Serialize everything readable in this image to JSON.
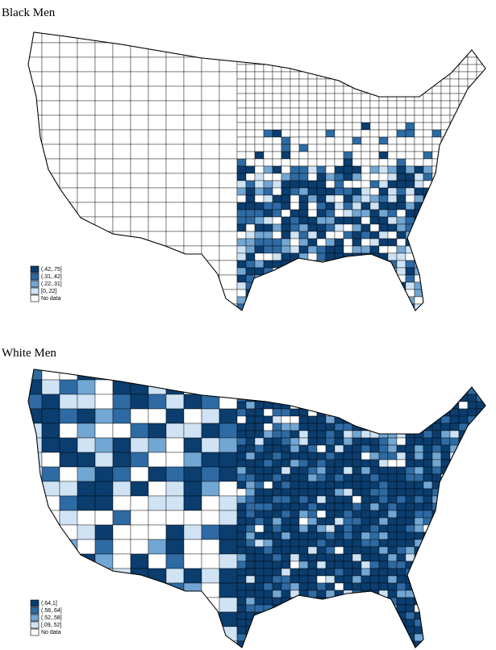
{
  "maps": [
    {
      "title": "Black Men",
      "legend": [
        {
          "label": "(.42,.75]",
          "color": "#0b3d6e"
        },
        {
          "label": "(.31,.42]",
          "color": "#2e6aa3"
        },
        {
          "label": "(.22,.31]",
          "color": "#72a6d3"
        },
        {
          "label": "[0,.22]",
          "color": "#cfe3f5"
        },
        {
          "label": "No data",
          "color": "#ffffff"
        }
      ]
    },
    {
      "title": "White Men",
      "legend": [
        {
          "label": "(.64,1]",
          "color": "#0b3d6e"
        },
        {
          "label": "(.58,.64]",
          "color": "#2e6aa3"
        },
        {
          "label": "(.52,.58]",
          "color": "#72a6d3"
        },
        {
          "label": "[.09,.52]",
          "color": "#cfe3f5"
        },
        {
          "label": "No data",
          "color": "#ffffff"
        }
      ]
    }
  ]
}
